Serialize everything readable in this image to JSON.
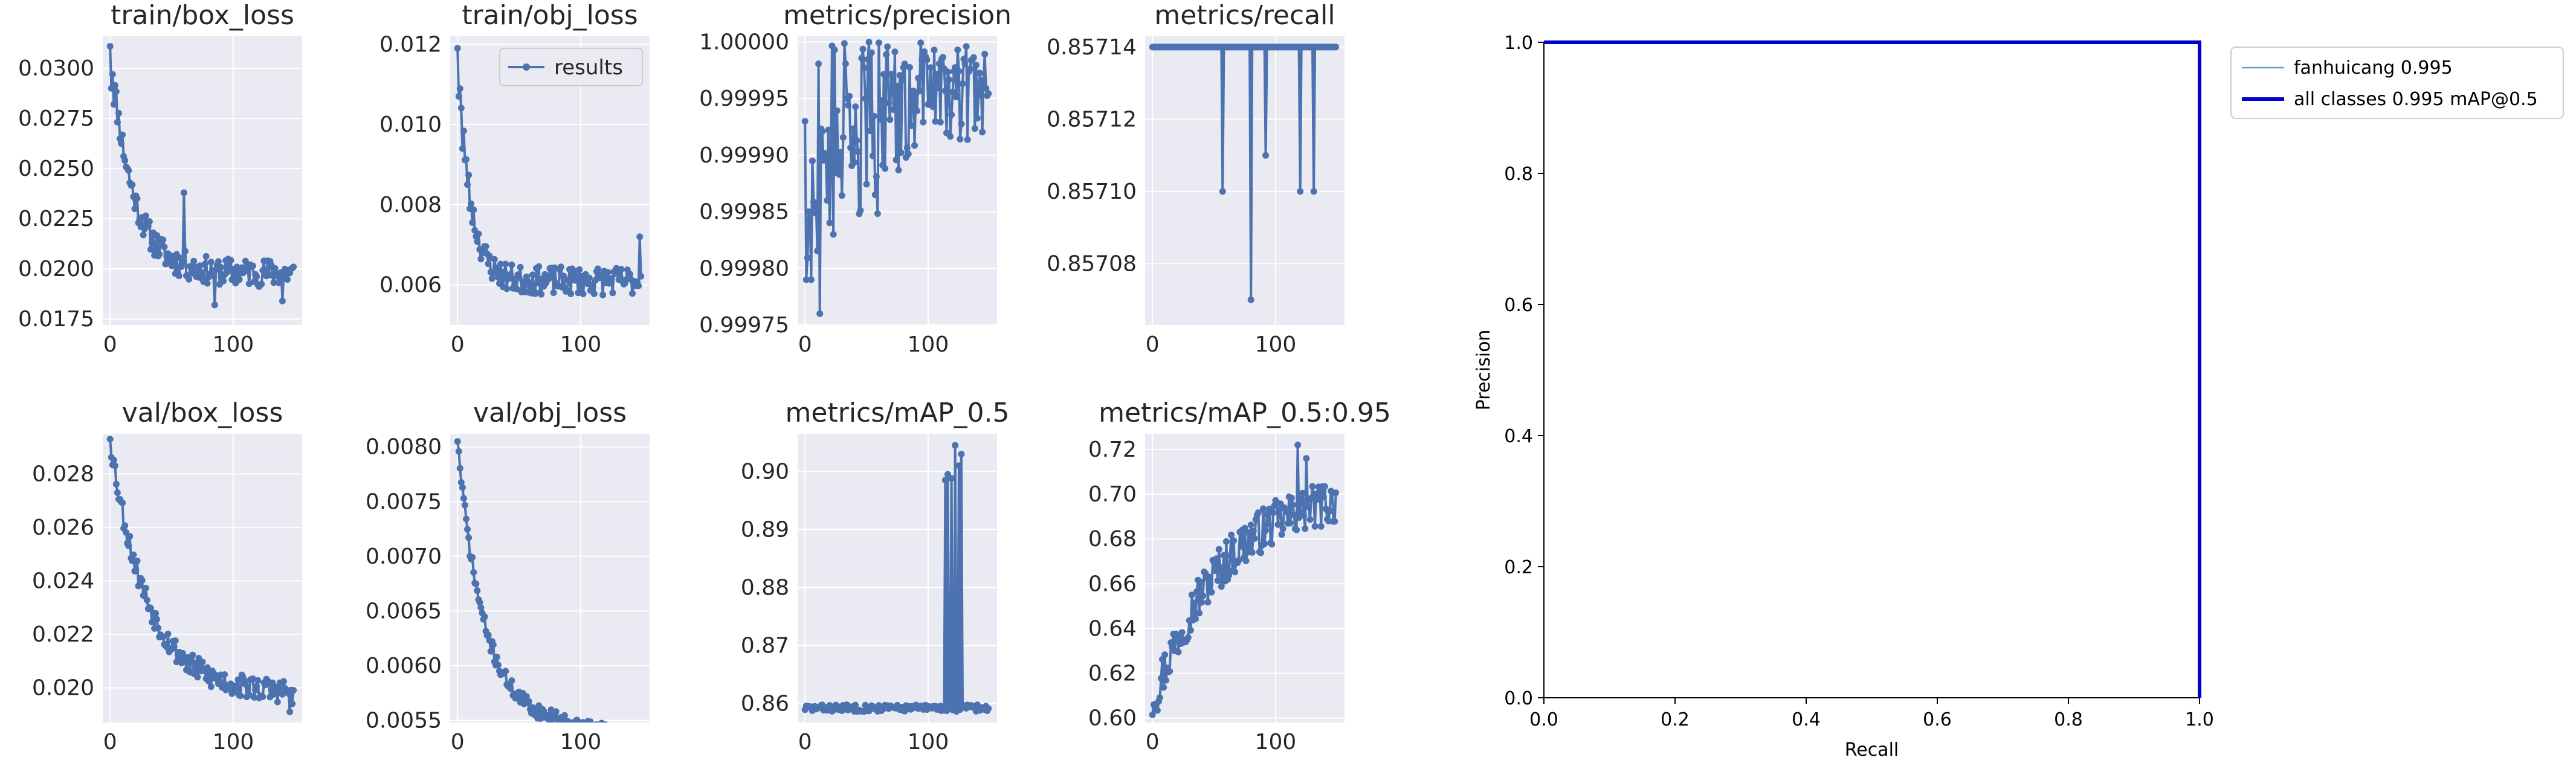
{
  "colors": {
    "series": "#4c72b0",
    "panel_bg": "#eaeaf2",
    "grid": "#ffffff",
    "pr_class": "#5ba3c8",
    "pr_all": "#0000cc",
    "pr_axis": "#000000"
  },
  "chart_data": [
    {
      "id": "train_box_loss",
      "type": "line",
      "title": "train/box_loss",
      "xlim": [
        -6,
        156
      ],
      "ylim": [
        0.0172,
        0.0316
      ],
      "xticks": [
        0,
        100
      ],
      "xtick_labels": [
        "0",
        "100"
      ],
      "yticks": [
        0.0175,
        0.02,
        0.0225,
        0.025,
        0.0275,
        0.03
      ],
      "ytick_labels": [
        "0.0175",
        "0.0200",
        "0.0225",
        "0.0250",
        "0.0275",
        "0.0300"
      ],
      "start": 0.0311,
      "end": 0.0198,
      "decay": 18,
      "noise": 0.0007,
      "seed": 11,
      "spikes": [
        [
          1,
          0.029
        ],
        [
          3,
          0.0282
        ],
        [
          60,
          0.0238
        ],
        [
          85,
          0.0182
        ],
        [
          140,
          0.0184
        ]
      ]
    },
    {
      "id": "train_obj_loss",
      "type": "line",
      "title": "train/obj_loss",
      "xlim": [
        -6,
        156
      ],
      "ylim": [
        0.005,
        0.0122
      ],
      "xticks": [
        0,
        100
      ],
      "xtick_labels": [
        "0",
        "100"
      ],
      "yticks": [
        0.006,
        0.008,
        0.01,
        0.012
      ],
      "ytick_labels": [
        "0.006",
        "0.008",
        "0.010",
        "0.012"
      ],
      "start": 0.0119,
      "end": 0.0061,
      "decay": 10,
      "noise": 0.00035,
      "seed": 23,
      "legend": "results",
      "spikes": [
        [
          1,
          0.0107
        ],
        [
          4,
          0.0094
        ],
        [
          10,
          0.0079
        ],
        [
          148,
          0.0072
        ]
      ]
    },
    {
      "id": "metrics_precision",
      "type": "line",
      "title": "metrics/precision",
      "xlim": [
        -6,
        156
      ],
      "ylim": [
        0.99975,
        1.000005
      ],
      "xticks": [
        0,
        100
      ],
      "xtick_labels": [
        "0",
        "100"
      ],
      "yticks": [
        0.99975,
        0.9998,
        0.99985,
        0.9999,
        0.99995,
        1.0
      ],
      "ytick_labels": [
        "0.99975",
        "0.99980",
        "0.99985",
        "0.99990",
        "0.99995",
        "1.00000"
      ],
      "mode": "precision",
      "seed": 37
    },
    {
      "id": "metrics_recall",
      "type": "line",
      "title": "metrics/recall",
      "xlim": [
        -6,
        156
      ],
      "ylim": [
        0.857063,
        0.857143
      ],
      "xticks": [
        0,
        100
      ],
      "xtick_labels": [
        "0",
        "100"
      ],
      "yticks": [
        0.85708,
        0.8571,
        0.85712,
        0.85714
      ],
      "ytick_labels": [
        "0.85708",
        "0.85710",
        "0.85712",
        "0.85714"
      ],
      "mode": "recall",
      "base": 0.85714,
      "dips": [
        [
          57,
          0.8571
        ],
        [
          80,
          0.85707
        ],
        [
          92,
          0.85711
        ],
        [
          120,
          0.8571
        ],
        [
          131,
          0.8571
        ]
      ]
    },
    {
      "id": "val_box_loss",
      "type": "line",
      "title": "val/box_loss",
      "xlim": [
        -6,
        156
      ],
      "ylim": [
        0.0187,
        0.0295
      ],
      "xticks": [
        0,
        100
      ],
      "xtick_labels": [
        "0",
        "100"
      ],
      "yticks": [
        0.02,
        0.022,
        0.024,
        0.026,
        0.028
      ],
      "ytick_labels": [
        "0.020",
        "0.022",
        "0.024",
        "0.026",
        "0.028"
      ],
      "start": 0.0293,
      "end": 0.0198,
      "decay": 30,
      "noise": 0.00045,
      "seed": 53,
      "spikes": [
        [
          146,
          0.0191
        ],
        [
          148,
          0.0194
        ]
      ]
    },
    {
      "id": "val_obj_loss",
      "type": "line",
      "title": "val/obj_loss",
      "xlim": [
        -6,
        156
      ],
      "ylim": [
        0.00548,
        0.00812
      ],
      "xticks": [
        0,
        100
      ],
      "xtick_labels": [
        "0",
        "100"
      ],
      "yticks": [
        0.0055,
        0.006,
        0.0065,
        0.007,
        0.0075,
        0.008
      ],
      "ytick_labels": [
        "0.0055",
        "0.0060",
        "0.0065",
        "0.0070",
        "0.0075",
        "0.0080"
      ],
      "start": 0.00805,
      "end": 0.0056,
      "decay": 20,
      "noise": 7e-05,
      "seed": 71,
      "linear": 5.5e-06
    },
    {
      "id": "metrics_map_05",
      "type": "line",
      "title": "metrics/mAP_0.5",
      "xlim": [
        -6,
        156
      ],
      "ylim": [
        0.8567,
        0.9065
      ],
      "xticks": [
        0,
        100
      ],
      "xtick_labels": [
        "0",
        "100"
      ],
      "yticks": [
        0.86,
        0.87,
        0.88,
        0.89,
        0.9
      ],
      "ytick_labels": [
        "0.86",
        "0.87",
        "0.88",
        "0.89",
        "0.90"
      ],
      "mode": "map05",
      "base": 0.8592,
      "seed": 83,
      "spikes": [
        [
          114,
          0.8985
        ],
        [
          116,
          0.8995
        ],
        [
          119,
          0.8988
        ],
        [
          122,
          0.9045
        ],
        [
          125,
          0.901
        ],
        [
          127,
          0.903
        ]
      ]
    },
    {
      "id": "metrics_map_05_095",
      "type": "line",
      "title": "metrics/mAP_0.5:0.95",
      "xlim": [
        -6,
        156
      ],
      "ylim": [
        0.598,
        0.727
      ],
      "xticks": [
        0,
        100
      ],
      "xtick_labels": [
        "0",
        "100"
      ],
      "yticks": [
        0.6,
        0.62,
        0.64,
        0.66,
        0.68,
        0.7,
        0.72
      ],
      "ytick_labels": [
        "0.60",
        "0.62",
        "0.64",
        "0.66",
        "0.68",
        "0.70",
        "0.72"
      ],
      "mode": "growth",
      "start": 0.606,
      "end": 0.703,
      "tau": 55,
      "noise": 0.01,
      "seed": 97,
      "spikes": [
        [
          1,
          0.606
        ],
        [
          118,
          0.722
        ],
        [
          125,
          0.716
        ]
      ]
    },
    {
      "id": "pr_curve",
      "type": "line",
      "title": "",
      "xlabel": "Recall",
      "ylabel": "Precision",
      "xlim": [
        0,
        1
      ],
      "ylim": [
        0,
        1
      ],
      "xticks": [
        0,
        0.2,
        0.4,
        0.6,
        0.8,
        1.0
      ],
      "xtick_labels": [
        "0.0",
        "0.2",
        "0.4",
        "0.6",
        "0.8",
        "1.0"
      ],
      "yticks": [
        0,
        0.2,
        0.4,
        0.6,
        0.8,
        1.0
      ],
      "ytick_labels": [
        "0.0",
        "0.2",
        "0.4",
        "0.6",
        "0.8",
        "1.0"
      ],
      "series": [
        {
          "name": "fanhuicang 0.995",
          "x": [
            0,
            1,
            1
          ],
          "y": [
            1,
            1,
            0
          ]
        },
        {
          "name": "all classes 0.995 mAP@0.5",
          "x": [
            0,
            1,
            1
          ],
          "y": [
            1,
            1,
            0
          ]
        }
      ]
    }
  ]
}
